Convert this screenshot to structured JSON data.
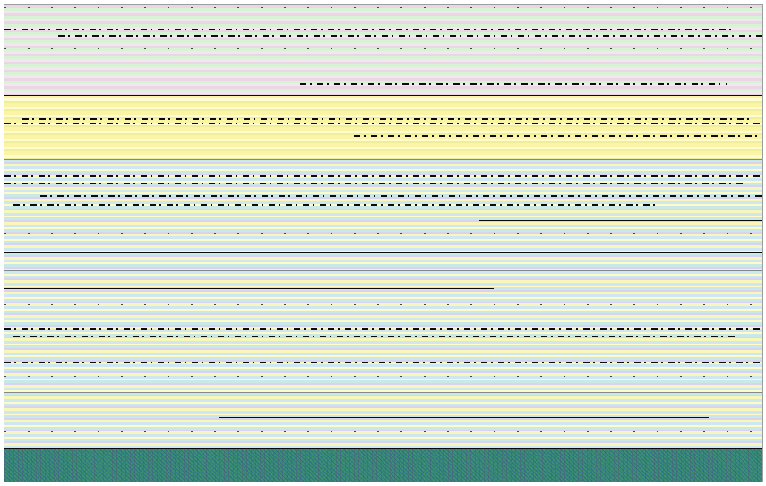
{
  "colors": {
    "pink_band": "#ead7e3",
    "yellow_band": "#fbf4a5",
    "cyan_band": "#c9e9e8",
    "noise_band": "#3f8f74",
    "ink": "#0b0b0b"
  }
}
